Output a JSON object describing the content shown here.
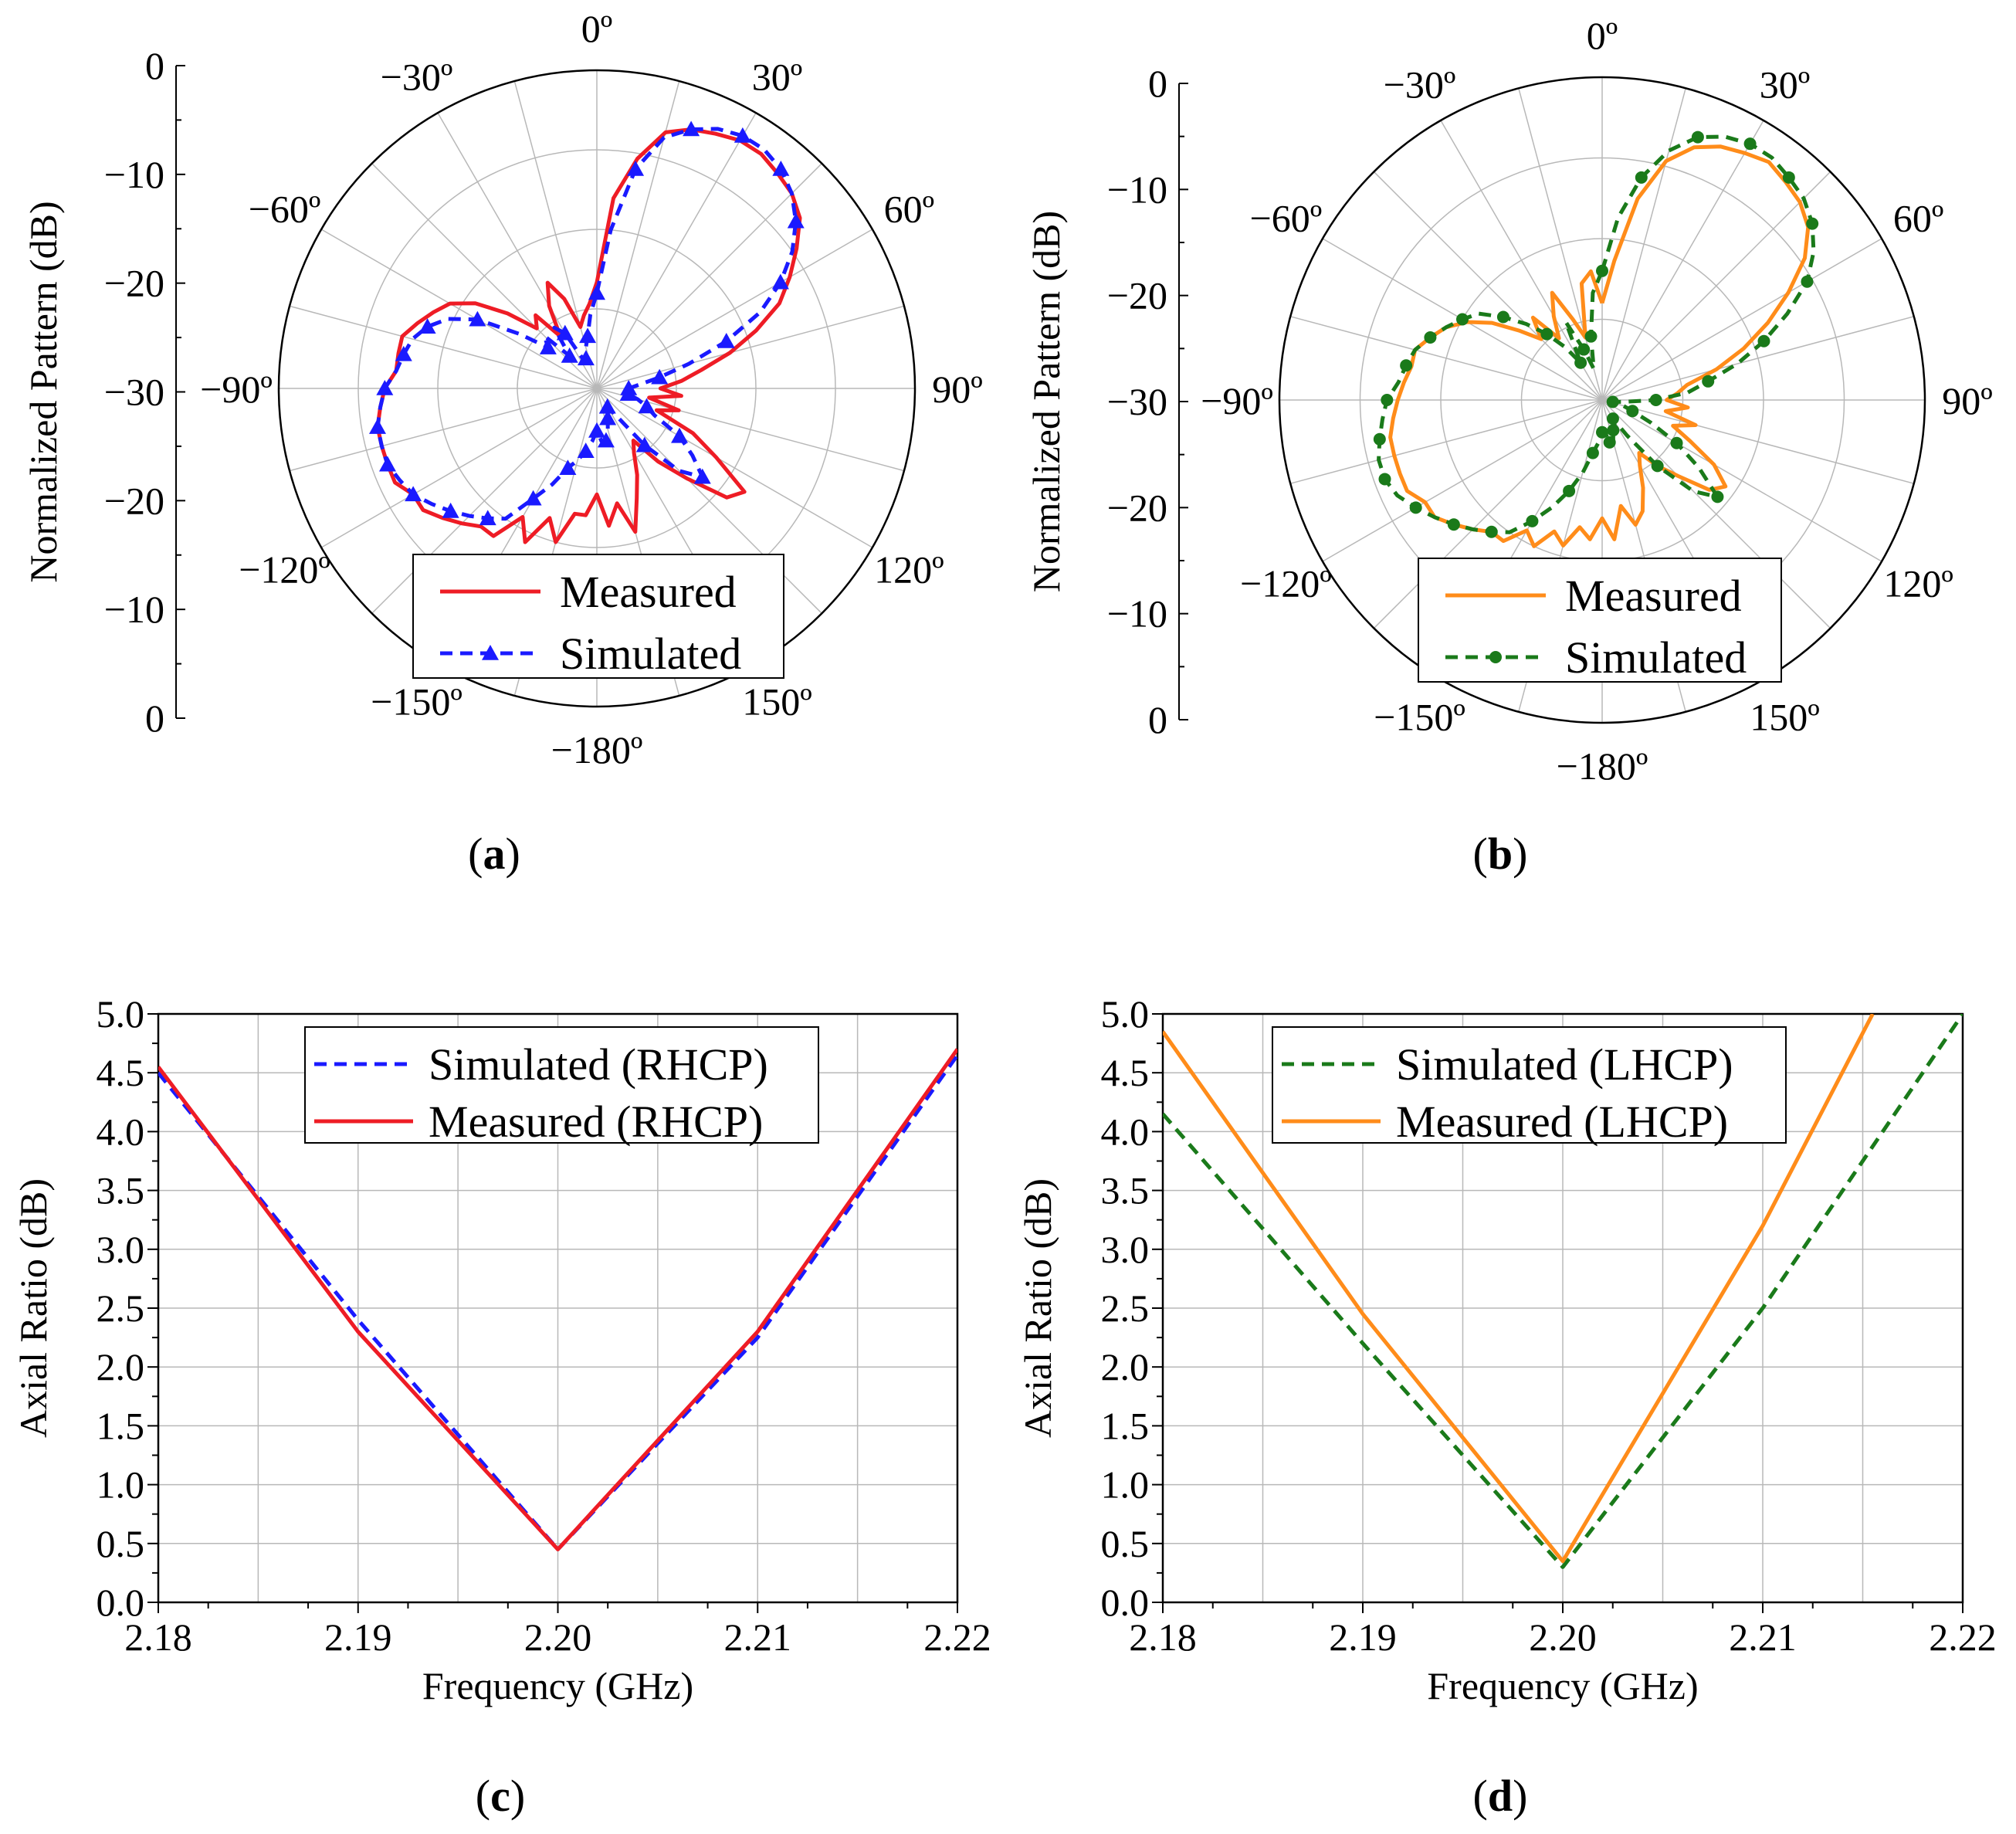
{
  "colors": {
    "red": "#ee1c25",
    "blue": "#1a1aff",
    "orange": "#ff8c1a",
    "green": "#1a7a1a",
    "grid": "#b8b8b8"
  },
  "chart_data": [
    {
      "panel": "a",
      "type": "line",
      "subtype": "polar",
      "caption": "a",
      "ylabel": "Normalized Pattern (dB)",
      "radial_ticks": [
        "0",
        "−10",
        "−20",
        "−30",
        "−20",
        "−10",
        "0"
      ],
      "angle_labels": [
        "0º",
        "30º",
        "60º",
        "90º",
        "120º",
        "150º",
        "−180º",
        "−150º",
        "−120º",
        "−90º",
        "−60º",
        "−30º"
      ],
      "radial_range_db": [
        -30,
        0
      ],
      "series": [
        {
          "name": "Measured",
          "color": "red",
          "style": "solid",
          "marker": "none",
          "angles_deg": [
            0,
            5,
            10,
            15,
            20,
            25,
            30,
            35,
            40,
            45,
            50,
            55,
            60,
            65,
            70,
            75,
            80,
            85,
            90,
            95,
            100,
            105,
            110,
            115,
            120,
            125,
            130,
            135,
            140,
            145,
            150,
            155,
            160,
            165,
            170,
            175,
            180,
            185,
            190,
            195,
            200,
            205,
            210,
            215,
            220,
            225,
            230,
            235,
            240,
            245,
            250,
            255,
            260,
            265,
            270,
            275,
            280,
            285,
            290,
            295,
            300,
            305,
            310,
            315,
            320,
            325,
            330,
            335,
            340,
            345,
            350,
            355
          ],
          "values_db": [
            -20,
            -12,
            -8,
            -5,
            -4,
            -3.5,
            -3,
            -3,
            -3.5,
            -4,
            -5,
            -7,
            -9,
            -11,
            -14,
            -17,
            -20,
            -22,
            -24,
            -22,
            -25,
            -22,
            -24,
            -20,
            -17,
            -13,
            -14,
            -18,
            -21,
            -24,
            -23,
            -21,
            -19,
            -16,
            -19,
            -17,
            -20,
            -18,
            -18,
            -15,
            -17,
            -14,
            -16,
            -13,
            -13,
            -12,
            -11,
            -10,
            -10,
            -9,
            -9,
            -9,
            -9,
            -9.5,
            -10,
            -11,
            -11,
            -11,
            -12,
            -13,
            -14,
            -16,
            -19,
            -22,
            -21,
            -24,
            -21,
            -19,
            -21,
            -24,
            -23,
            -22
          ]
        },
        {
          "name": "Simulated",
          "color": "blue",
          "style": "dashed",
          "marker": "triangle",
          "angles_deg": [
            0,
            5,
            10,
            15,
            20,
            25,
            30,
            35,
            40,
            45,
            50,
            55,
            60,
            65,
            70,
            75,
            80,
            85,
            90,
            95,
            100,
            105,
            110,
            115,
            120,
            125,
            130,
            135,
            140,
            145,
            150,
            155,
            160,
            165,
            170,
            175,
            180,
            185,
            190,
            195,
            200,
            205,
            210,
            215,
            220,
            225,
            230,
            235,
            240,
            245,
            250,
            255,
            260,
            265,
            270,
            275,
            280,
            285,
            290,
            295,
            300,
            305,
            310,
            315,
            320,
            325,
            330,
            335,
            340,
            345,
            350,
            355
          ],
          "values_db": [
            -21,
            -15,
            -9,
            -5.5,
            -4,
            -3,
            -2.5,
            -2.5,
            -3,
            -4,
            -5.5,
            -7.5,
            -10,
            -13,
            -17,
            -21,
            -24,
            -26,
            -27,
            -27,
            -27,
            -26,
            -25,
            -24,
            -21,
            -19,
            -17,
            -19,
            -23,
            -27,
            -28,
            -28,
            -27,
            -26,
            -25,
            -25,
            -26,
            -25,
            -24,
            -23,
            -22,
            -20,
            -18,
            -15,
            -14,
            -13,
            -12,
            -11,
            -10,
            -9.5,
            -9,
            -9,
            -9,
            -9.5,
            -10,
            -11,
            -11.5,
            -12,
            -13,
            -14.5,
            -17,
            -21,
            -24,
            -23,
            -26,
            -23,
            -24,
            -27,
            -27,
            -26,
            -25,
            -23
          ]
        }
      ]
    },
    {
      "panel": "b",
      "type": "line",
      "subtype": "polar",
      "caption": "b",
      "ylabel": "Normalized Pattern (dB)",
      "radial_ticks": [
        "0",
        "−10",
        "−20",
        "−30",
        "−20",
        "−10",
        "0"
      ],
      "angle_labels": [
        "0º",
        "30º",
        "60º",
        "90º",
        "120º",
        "150º",
        "−180º",
        "−150º",
        "−120º",
        "−90º",
        "−60º",
        "−30º"
      ],
      "radial_range_db": [
        -30,
        0
      ],
      "series": [
        {
          "name": "Measured",
          "color": "orange",
          "style": "solid",
          "marker": "none",
          "angles_deg": [
            0,
            5,
            10,
            15,
            20,
            25,
            30,
            35,
            40,
            45,
            50,
            55,
            60,
            65,
            70,
            75,
            80,
            85,
            90,
            95,
            100,
            105,
            110,
            115,
            120,
            125,
            130,
            135,
            140,
            145,
            150,
            155,
            160,
            165,
            170,
            175,
            180,
            185,
            190,
            195,
            200,
            205,
            210,
            215,
            220,
            225,
            230,
            235,
            240,
            245,
            250,
            255,
            260,
            265,
            270,
            275,
            280,
            285,
            290,
            295,
            300,
            305,
            310,
            315,
            320,
            325,
            330,
            335,
            340,
            345,
            350,
            355
          ],
          "values_db": [
            -21,
            -17,
            -11,
            -7,
            -5,
            -4,
            -3.5,
            -3,
            -3.5,
            -4,
            -5,
            -7,
            -10,
            -13,
            -16,
            -19,
            -22,
            -23,
            -24,
            -22,
            -24,
            -21,
            -23,
            -21,
            -18,
            -16,
            -17,
            -20,
            -22,
            -24,
            -23,
            -21,
            -19,
            -18,
            -20,
            -17,
            -19,
            -17,
            -18,
            -16,
            -17,
            -15,
            -16,
            -14,
            -14,
            -13,
            -12,
            -11,
            -11,
            -10,
            -10,
            -10,
            -10,
            -10.5,
            -11,
            -11.5,
            -12,
            -12,
            -13,
            -14,
            -15.5,
            -17.5,
            -20,
            -22,
            -20,
            -23,
            -21,
            -19,
            -22,
            -24,
            -19,
            -18
          ]
        },
        {
          "name": "Simulated",
          "color": "green",
          "style": "dashed",
          "marker": "circle",
          "angles_deg": [
            0,
            5,
            10,
            15,
            20,
            25,
            30,
            35,
            40,
            45,
            50,
            55,
            60,
            65,
            70,
            75,
            80,
            85,
            90,
            95,
            100,
            105,
            110,
            115,
            120,
            125,
            130,
            135,
            140,
            145,
            150,
            155,
            160,
            165,
            170,
            175,
            180,
            185,
            190,
            195,
            200,
            205,
            210,
            215,
            220,
            225,
            230,
            235,
            240,
            245,
            250,
            255,
            260,
            265,
            270,
            275,
            280,
            285,
            290,
            295,
            300,
            305,
            310,
            315,
            320,
            325,
            330,
            335,
            340,
            345,
            350,
            355
          ],
          "values_db": [
            -18,
            -13,
            -9,
            -6,
            -4,
            -3,
            -2.5,
            -2.5,
            -3,
            -3.5,
            -4.5,
            -6,
            -8,
            -11,
            -14,
            -17,
            -20,
            -22,
            -25,
            -28,
            -29,
            -28,
            -27,
            -25,
            -22,
            -19,
            -16,
            -18,
            -22,
            -26,
            -28,
            -27,
            -27,
            -26,
            -26,
            -27,
            -27,
            -26,
            -25,
            -23,
            -21,
            -19,
            -17,
            -15,
            -14,
            -13,
            -12,
            -11,
            -10,
            -9,
            -8.5,
            -8.5,
            -9,
            -9.5,
            -10,
            -11,
            -11.5,
            -12,
            -13,
            -14,
            -15,
            -16,
            -18,
            -20,
            -22,
            -24,
            -26,
            -22,
            -25,
            -27,
            -24,
            -20
          ]
        }
      ]
    },
    {
      "panel": "c",
      "type": "line",
      "caption": "c",
      "xlabel": "Frequency (GHz)",
      "ylabel": "Axial Ratio (dB)",
      "xlim": [
        2.18,
        2.22
      ],
      "ylim": [
        0,
        5
      ],
      "xticks": [
        "2.18",
        "2.19",
        "2.20",
        "2.21",
        "2.22"
      ],
      "yticks": [
        "0.0",
        "0.5",
        "1.0",
        "1.5",
        "2.0",
        "2.5",
        "3.0",
        "3.5",
        "4.0",
        "4.5",
        "5.0"
      ],
      "series": [
        {
          "name": "Simulated (RHCP)",
          "color": "blue",
          "style": "dashed",
          "x": [
            2.18,
            2.19,
            2.2,
            2.21,
            2.22
          ],
          "y": [
            4.5,
            2.4,
            0.45,
            2.25,
            4.65
          ]
        },
        {
          "name": "Measured (RHCP)",
          "color": "red",
          "style": "solid",
          "x": [
            2.18,
            2.19,
            2.2,
            2.21,
            2.22
          ],
          "y": [
            4.55,
            2.3,
            0.45,
            2.3,
            4.7
          ]
        }
      ]
    },
    {
      "panel": "d",
      "type": "line",
      "caption": "d",
      "xlabel": "Frequency (GHz)",
      "ylabel": "Axial Ratio (dB)",
      "xlim": [
        2.18,
        2.22
      ],
      "ylim": [
        0,
        5
      ],
      "xticks": [
        "2.18",
        "2.19",
        "2.20",
        "2.21",
        "2.22"
      ],
      "yticks": [
        "0.0",
        "0.5",
        "1.0",
        "1.5",
        "2.0",
        "2.5",
        "3.0",
        "3.5",
        "4.0",
        "4.5",
        "5.0"
      ],
      "series": [
        {
          "name": "Simulated (LHCP)",
          "color": "green",
          "style": "dashed",
          "x": [
            2.18,
            2.19,
            2.2,
            2.21,
            2.22
          ],
          "y": [
            4.15,
            2.2,
            0.3,
            2.5,
            5.0
          ]
        },
        {
          "name": "Measured (LHCP)",
          "color": "orange",
          "style": "solid",
          "x": [
            2.18,
            2.19,
            2.2,
            2.21,
            2.2155
          ],
          "y": [
            4.85,
            2.45,
            0.35,
            3.2,
            5.0
          ]
        }
      ]
    }
  ]
}
